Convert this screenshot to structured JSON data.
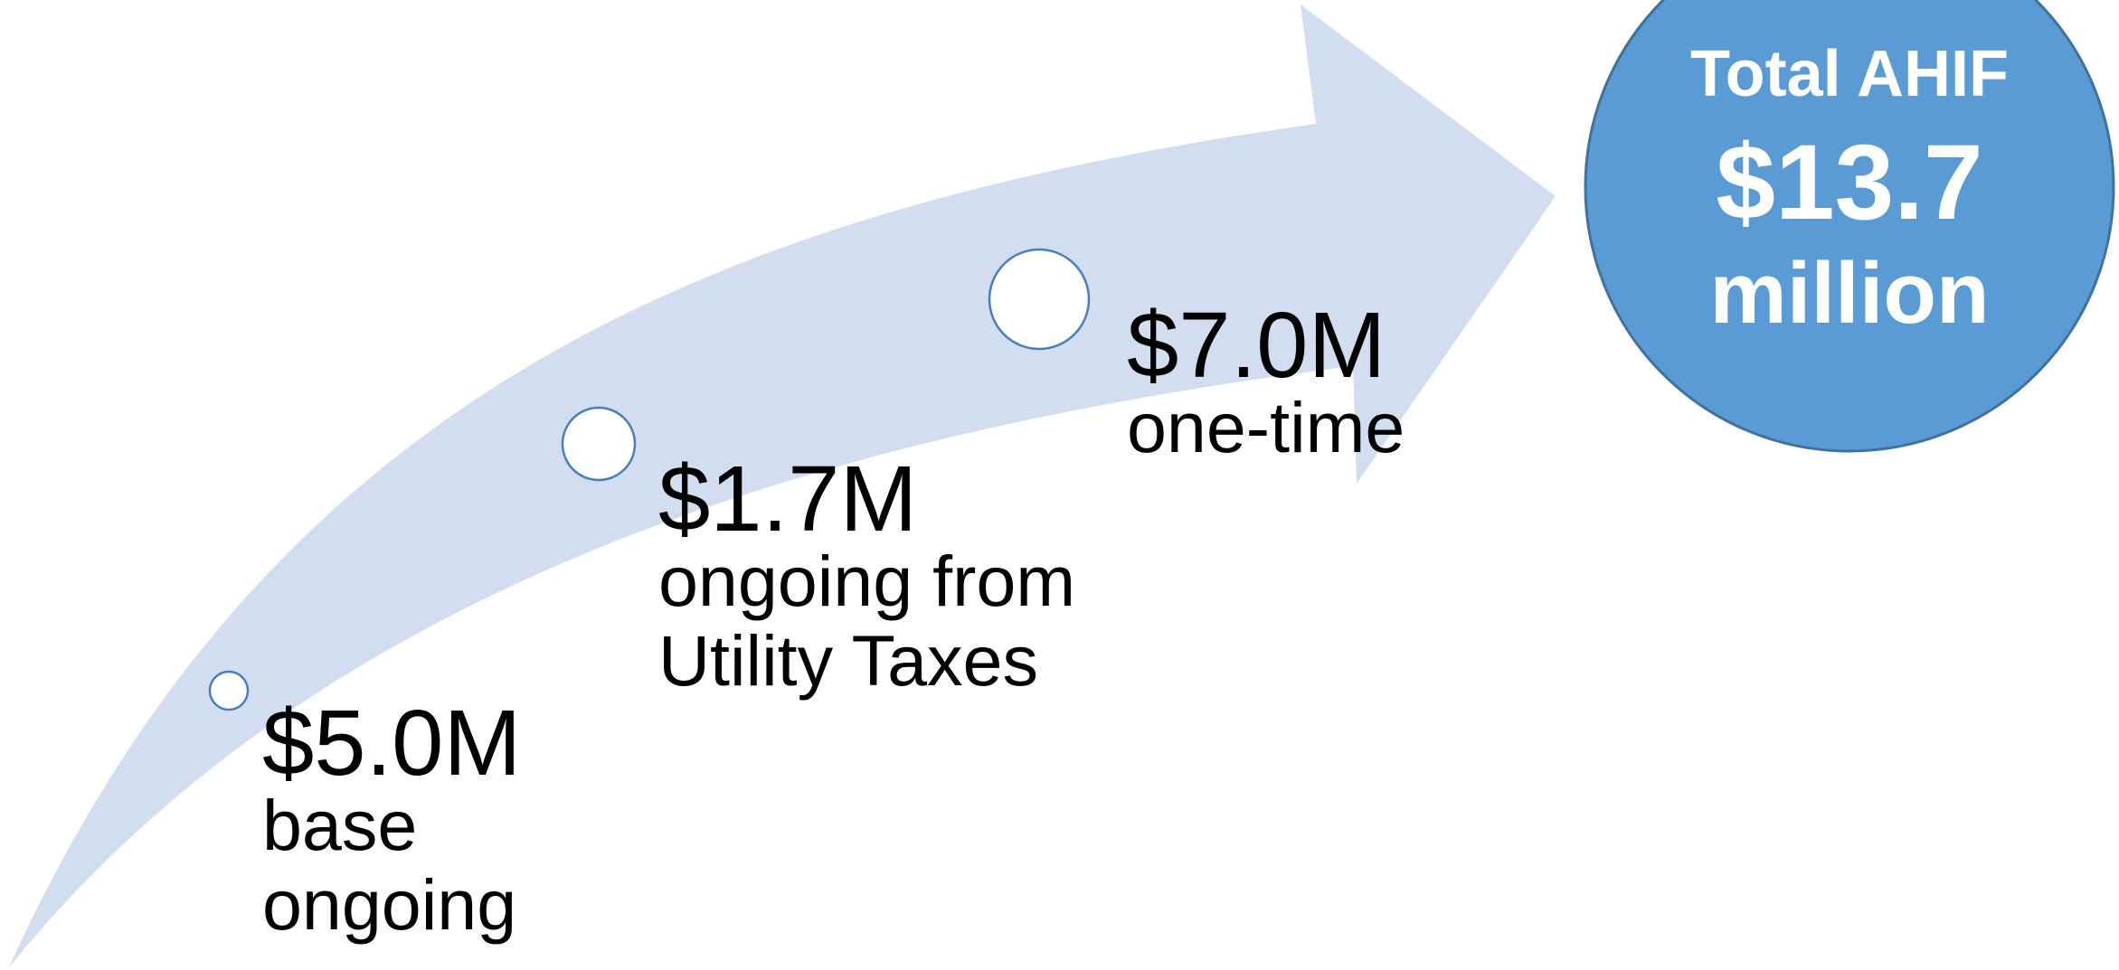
{
  "colors": {
    "arrow_fill": "#D2DEEF",
    "marker_stroke": "#4A7EBB",
    "marker_fill": "#FFFFFF",
    "total_fill": "#5B9BD5",
    "total_stroke": "#41719C",
    "label_text": "#000000",
    "total_text": "#FFFFFF"
  },
  "milestones": [
    {
      "amount": "$5.0M",
      "description": "base\nongoing"
    },
    {
      "amount": "$1.7M",
      "description": "ongoing from\nUtility Taxes"
    },
    {
      "amount": "$7.0M",
      "description": "one-time"
    }
  ],
  "total": {
    "title": "Total AHIF",
    "amount": "$13.7",
    "unit": "million"
  }
}
